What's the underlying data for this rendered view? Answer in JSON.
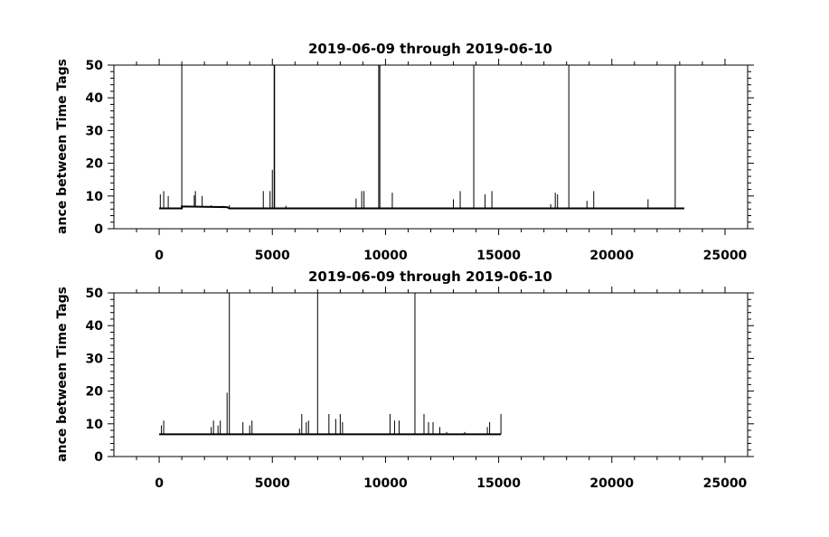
{
  "chart_data": [
    {
      "type": "line",
      "title": "2019-06-09 through 2019-06-10",
      "ylabel": "ance between Time Tags",
      "xlabel": "",
      "xlim": [
        -2000,
        26000
      ],
      "ylim": [
        0,
        50
      ],
      "xticks": [
        0,
        5000,
        10000,
        15000,
        20000,
        25000
      ],
      "yticks": [
        0,
        10,
        20,
        30,
        40,
        50
      ],
      "grid": false,
      "series": [
        {
          "baseline": [
            [
              0,
              6.2
            ],
            [
              1000,
              6.2
            ],
            [
              1000,
              6.8
            ],
            [
              3000,
              6.6
            ],
            [
              3100,
              6.2
            ],
            [
              23200,
              6.2
            ]
          ],
          "spikes": [
            [
              50,
              10.5
            ],
            [
              200,
              11.5
            ],
            [
              400,
              10
            ],
            [
              1000,
              50
            ],
            [
              1550,
              10.2
            ],
            [
              1600,
              11.5
            ],
            [
              1900,
              10
            ],
            [
              2300,
              7.2
            ],
            [
              2800,
              7
            ],
            [
              3100,
              7.2
            ],
            [
              4600,
              11.5
            ],
            [
              4900,
              11.5
            ],
            [
              5000,
              18
            ],
            [
              5080,
              50
            ],
            [
              5100,
              50
            ],
            [
              5600,
              7
            ],
            [
              8700,
              9.2
            ],
            [
              8950,
              11.5
            ],
            [
              9050,
              11.5
            ],
            [
              9700,
              50
            ],
            [
              9750,
              50
            ],
            [
              10300,
              11
            ],
            [
              13000,
              9
            ],
            [
              13300,
              11.5
            ],
            [
              13900,
              50
            ],
            [
              14400,
              10.5
            ],
            [
              14700,
              11.5
            ],
            [
              17300,
              7.5
            ],
            [
              17500,
              11
            ],
            [
              17600,
              10.5
            ],
            [
              18100,
              50
            ],
            [
              18900,
              8.5
            ],
            [
              19200,
              11.5
            ],
            [
              21600,
              9
            ],
            [
              22800,
              50
            ]
          ]
        }
      ]
    },
    {
      "type": "line",
      "title": "2019-06-09 through 2019-06-10",
      "ylabel": "ance between Time Tags",
      "xlabel": "",
      "xlim": [
        -2000,
        26000
      ],
      "ylim": [
        0,
        50
      ],
      "xticks": [
        0,
        5000,
        10000,
        15000,
        20000,
        25000
      ],
      "yticks": [
        0,
        10,
        20,
        30,
        40,
        50
      ],
      "grid": false,
      "series": [
        {
          "baseline": [
            [
              0,
              6.8
            ],
            [
              15100,
              6.8
            ]
          ],
          "spikes": [
            [
              100,
              9.5
            ],
            [
              200,
              11
            ],
            [
              2300,
              9
            ],
            [
              2400,
              11
            ],
            [
              2600,
              9.5
            ],
            [
              2700,
              11
            ],
            [
              3000,
              19.5
            ],
            [
              3100,
              50
            ],
            [
              3700,
              10.5
            ],
            [
              4000,
              9.5
            ],
            [
              4100,
              11
            ],
            [
              6200,
              8.5
            ],
            [
              6300,
              13
            ],
            [
              6500,
              10.5
            ],
            [
              6600,
              11
            ],
            [
              7000,
              50
            ],
            [
              7500,
              13
            ],
            [
              7800,
              11.5
            ],
            [
              8000,
              13
            ],
            [
              8100,
              10.5
            ],
            [
              10200,
              13
            ],
            [
              10400,
              11
            ],
            [
              10600,
              11
            ],
            [
              11300,
              50
            ],
            [
              11700,
              13
            ],
            [
              11900,
              10.5
            ],
            [
              12100,
              10.5
            ],
            [
              12400,
              9
            ],
            [
              12700,
              7.5
            ],
            [
              13500,
              7.5
            ],
            [
              14500,
              9
            ],
            [
              14600,
              10.5
            ],
            [
              15100,
              13
            ]
          ]
        }
      ]
    }
  ]
}
